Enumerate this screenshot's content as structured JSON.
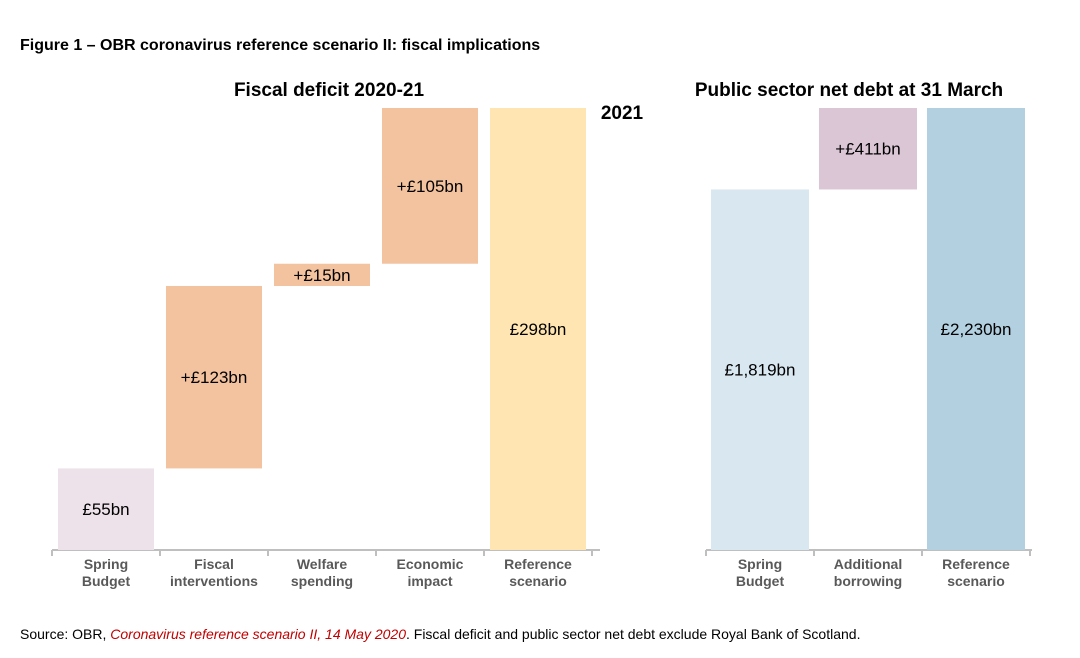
{
  "figure": {
    "title": "Figure 1 – OBR coronavirus reference scenario II: fiscal implications",
    "source": {
      "prefix": "Source: OBR, ",
      "reference": "Coronavirus reference scenario II, 14 May 2020",
      "suffix": ". Fiscal deficit and public sector net debt exclude Royal Bank of Scotland."
    }
  },
  "colors": {
    "spring_deficit": "#ede2ea",
    "orange": "#f3c29f",
    "reference_deficit": "#fee5b1",
    "spring_debt": "#d8e7f0",
    "borrowing": "#dbc6d6",
    "reference_debt": "#b3d0e1",
    "axis": "#bfbfbf",
    "tick_label": "#595959",
    "source_ref": "#c00000"
  },
  "chart_data": [
    {
      "type": "bar",
      "subtype": "waterfall",
      "title": "Fiscal deficit 2020-21",
      "unit": "£bn",
      "categories": [
        "Spring\nBudget",
        "Fiscal\ninterventions",
        "Welfare\nspending",
        "Economic\nimpact",
        "Reference\nscenario"
      ],
      "values": [
        55,
        123,
        15,
        105,
        298
      ],
      "labels": [
        "£55bn",
        "+£123bn",
        "+£15bn",
        "+£105bn",
        "£298bn"
      ],
      "bar_kind": [
        "total",
        "increment",
        "increment",
        "increment",
        "total"
      ],
      "colors": [
        "#ede2ea",
        "#f3c29f",
        "#f3c29f",
        "#f3c29f",
        "#fee5b1"
      ],
      "ylim": [
        0,
        298
      ],
      "grid": false,
      "legend": "none"
    },
    {
      "type": "bar",
      "subtype": "waterfall",
      "title": "Public sector net debt at 31 March",
      "title_line2": "2021",
      "unit": "£bn",
      "categories": [
        "Spring\nBudget",
        "Additional\nborrowing",
        "Reference\nscenario"
      ],
      "values": [
        1819,
        411,
        2230
      ],
      "labels": [
        "£1,819bn",
        "+£411bn",
        "£2,230bn"
      ],
      "bar_kind": [
        "total",
        "increment",
        "total"
      ],
      "colors": [
        "#d8e7f0",
        "#dbc6d6",
        "#b3d0e1"
      ],
      "ylim": [
        0,
        2230
      ],
      "grid": false,
      "legend": "none"
    }
  ]
}
